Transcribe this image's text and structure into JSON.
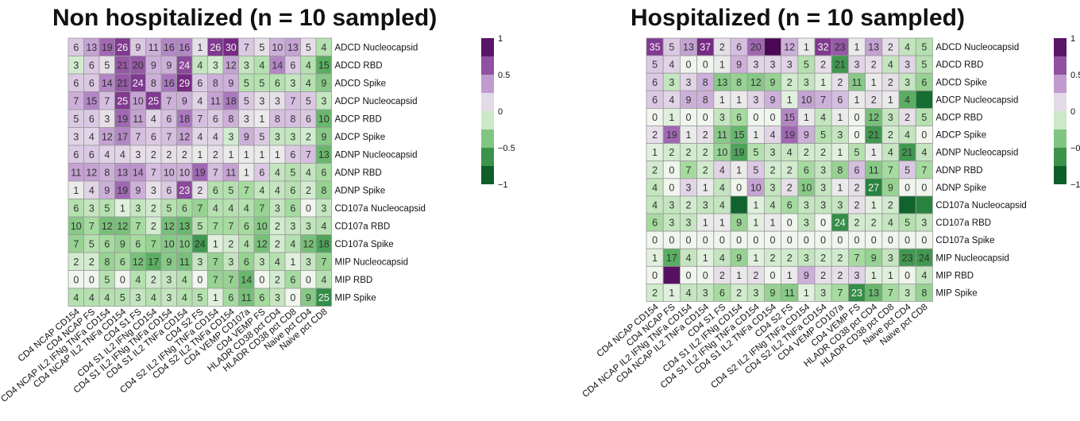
{
  "chart_data": [
    {
      "type": "heatmap",
      "title": "Non hospitalized (n = 10 sampled)",
      "x_categories": [
        "CD4 NCAP CD154",
        "CD4 NCAP FS",
        "CD4 NCAP IL2 IFNg TNFa CD154",
        "CD4 NCAP IL2 TNFa CD154",
        "CD4 S1 FS",
        "CD4 S1 IL2 IFNg CD154",
        "CD4 S1 IL2 IFNg TNFa CD154",
        "CD4 S1 IL2 TNFa CD154",
        "CD4 S2 FS",
        "CD4 S2 IL2 IFNg TNFa CD154",
        "CD4 S2 IL2 TNFa CD154",
        "CD4 VEMP CD107a",
        "CD4 VEMP FS",
        "HLADR CD38 pct CD4",
        "HLADR CD38 pct CD8",
        "Naive pct CD4",
        "Naive pct CD8"
      ],
      "y_categories": [
        "ADCD Nucleocapsid",
        "ADCD RBD",
        "ADCD Spike",
        "ADCP Nucleocapsid",
        "ADCP RBD",
        "ADCP Spike",
        "ADNP Nucleocapsid",
        "ADNP RBD",
        "ADNP Spike",
        "CD107a Nucleocapsid",
        "CD107a RBD",
        "CD107a Spike",
        "MIP Nucleocapsid",
        "MIP RBD",
        "MIP Spike"
      ],
      "cell_labels": [
        [
          "6",
          "13",
          "19",
          "26",
          "9",
          "11",
          "16",
          "16",
          "1",
          "26",
          "30",
          "7",
          "5",
          "10",
          "13",
          "5",
          "4"
        ],
        [
          "3",
          "6",
          "5",
          "21",
          "20",
          "9",
          "9",
          "24",
          "4",
          "3",
          "12",
          "3",
          "4",
          "14",
          "6",
          "4",
          "15"
        ],
        [
          "6",
          "6",
          "14",
          "21",
          "24",
          "8",
          "16",
          "29",
          "6",
          "8",
          "9",
          "5",
          "5",
          "6",
          "3",
          "4",
          "9"
        ],
        [
          "7",
          "15",
          "7",
          "25",
          "10",
          "25",
          "7",
          "9",
          "4",
          "11",
          "18",
          "5",
          "3",
          "3",
          "7",
          "5",
          "3"
        ],
        [
          "5",
          "6",
          "3",
          "19",
          "11",
          "4",
          "6",
          "18",
          "7",
          "6",
          "8",
          "3",
          "1",
          "8",
          "8",
          "6",
          "10"
        ],
        [
          "3",
          "4",
          "12",
          "17",
          "7",
          "6",
          "7",
          "12",
          "4",
          "4",
          "3",
          "9",
          "5",
          "3",
          "3",
          "2",
          "9"
        ],
        [
          "6",
          "6",
          "4",
          "4",
          "3",
          "2",
          "2",
          "2",
          "1",
          "2",
          "1",
          "1",
          "1",
          "1",
          "6",
          "7",
          "13"
        ],
        [
          "11",
          "12",
          "8",
          "13",
          "14",
          "7",
          "10",
          "10",
          "19",
          "7",
          "11",
          "1",
          "6",
          "4",
          "5",
          "4",
          "6"
        ],
        [
          "1",
          "4",
          "9",
          "19",
          "9",
          "3",
          "6",
          "23",
          "2",
          "6",
          "5",
          "7",
          "4",
          "4",
          "6",
          "2",
          "8"
        ],
        [
          "6",
          "3",
          "5",
          "1",
          "3",
          "2",
          "5",
          "6",
          "7",
          "4",
          "4",
          "4",
          "7",
          "3",
          "6",
          "0",
          "3"
        ],
        [
          "10",
          "7",
          "12",
          "12",
          "7",
          "2",
          "12",
          "13",
          "5",
          "7",
          "7",
          "6",
          "10",
          "2",
          "3",
          "3",
          "4"
        ],
        [
          "7",
          "5",
          "6",
          "9",
          "6",
          "7",
          "10",
          "10",
          "24",
          "1",
          "2",
          "4",
          "12",
          "2",
          "4",
          "12",
          "18"
        ],
        [
          "2",
          "2",
          "8",
          "6",
          "12",
          "17",
          "9",
          "11",
          "3",
          "7",
          "3",
          "6",
          "3",
          "4",
          "1",
          "3",
          "7"
        ],
        [
          "0",
          "0",
          "5",
          "0",
          "4",
          "2",
          "3",
          "4",
          "0",
          "7",
          "7",
          "14",
          "0",
          "2",
          "6",
          "0",
          "4"
        ],
        [
          "4",
          "4",
          "4",
          "5",
          "3",
          "4",
          "3",
          "4",
          "5",
          "1",
          "6",
          "11",
          "6",
          "3",
          "0",
          "9",
          "25"
        ]
      ],
      "values": [
        [
          0.2,
          0.35,
          0.55,
          0.7,
          0.2,
          0.3,
          0.45,
          0.45,
          0.1,
          0.7,
          0.75,
          0.2,
          0.1,
          0.3,
          0.35,
          0.1,
          -0.2
        ],
        [
          -0.1,
          0.2,
          0.1,
          0.6,
          0.6,
          0.3,
          0.3,
          0.65,
          -0.15,
          -0.1,
          0.35,
          -0.15,
          -0.2,
          0.45,
          0.2,
          -0.2,
          -0.5
        ],
        [
          0.2,
          0.2,
          0.45,
          0.6,
          0.7,
          0.3,
          0.5,
          0.75,
          0.2,
          0.3,
          0.3,
          -0.2,
          -0.2,
          -0.2,
          -0.15,
          -0.2,
          -0.35
        ],
        [
          0.3,
          0.45,
          0.25,
          0.7,
          0.35,
          0.7,
          0.3,
          0.3,
          0.15,
          0.35,
          0.5,
          0.2,
          0.1,
          0.1,
          0.25,
          0.2,
          -0.15
        ],
        [
          0.2,
          0.2,
          0.1,
          0.55,
          0.35,
          0.15,
          0.25,
          0.5,
          0.25,
          0.2,
          0.3,
          0.1,
          0.05,
          0.25,
          0.25,
          0.2,
          -0.45
        ],
        [
          0.15,
          0.15,
          0.35,
          0.45,
          0.25,
          0.2,
          0.25,
          0.35,
          0.15,
          0.15,
          -0.1,
          0.3,
          0.2,
          -0.15,
          -0.15,
          -0.1,
          -0.35
        ],
        [
          0.2,
          0.2,
          0.15,
          0.15,
          0.1,
          0.1,
          0.1,
          0.1,
          0.05,
          0.1,
          0.05,
          0.05,
          0.05,
          0.05,
          0.2,
          0.25,
          -0.45
        ],
        [
          0.35,
          0.35,
          0.3,
          0.4,
          0.4,
          0.25,
          0.3,
          0.3,
          0.55,
          0.25,
          0.35,
          0.05,
          0.2,
          -0.15,
          -0.2,
          -0.15,
          -0.25
        ],
        [
          0.05,
          0.15,
          0.3,
          0.55,
          0.3,
          0.1,
          0.2,
          0.65,
          0.1,
          -0.2,
          -0.2,
          -0.25,
          -0.15,
          -0.15,
          -0.2,
          -0.1,
          -0.3
        ],
        [
          -0.2,
          -0.15,
          -0.2,
          -0.05,
          -0.15,
          -0.1,
          -0.2,
          -0.25,
          -0.3,
          -0.2,
          -0.2,
          -0.2,
          -0.3,
          -0.15,
          -0.25,
          0.0,
          -0.15
        ],
        [
          -0.35,
          -0.25,
          -0.4,
          -0.4,
          -0.25,
          -0.1,
          -0.4,
          -0.45,
          -0.2,
          -0.25,
          -0.25,
          -0.25,
          -0.35,
          -0.1,
          -0.15,
          -0.15,
          -0.2
        ],
        [
          -0.3,
          -0.2,
          -0.25,
          -0.3,
          -0.25,
          -0.3,
          -0.35,
          -0.35,
          -0.6,
          -0.05,
          -0.1,
          -0.2,
          -0.4,
          -0.1,
          -0.2,
          -0.4,
          -0.55
        ],
        [
          -0.1,
          -0.1,
          -0.3,
          -0.25,
          -0.4,
          -0.5,
          -0.35,
          -0.4,
          -0.15,
          -0.3,
          -0.15,
          -0.3,
          -0.15,
          -0.2,
          -0.05,
          -0.15,
          -0.3
        ],
        [
          0.0,
          0.0,
          -0.2,
          0.0,
          -0.2,
          -0.1,
          -0.15,
          -0.2,
          0.0,
          -0.3,
          -0.3,
          -0.45,
          0.0,
          -0.1,
          -0.25,
          0.0,
          -0.2
        ],
        [
          -0.2,
          -0.2,
          -0.2,
          -0.2,
          -0.15,
          -0.2,
          -0.15,
          -0.2,
          -0.2,
          -0.05,
          -0.25,
          -0.4,
          -0.25,
          -0.15,
          0.0,
          -0.35,
          -0.65
        ]
      ],
      "colorbar": {
        "min": -1,
        "max": 1,
        "ticks": [
          "1",
          "0.5",
          "0",
          "−0.5",
          "−1"
        ]
      }
    },
    {
      "type": "heatmap",
      "title": "Hospitalized (n = 10 sampled)",
      "x_categories": [
        "CD4 NCAP CD154",
        "CD4 NCAP FS",
        "CD4 NCAP IL2 IFNg TNFa CD154",
        "CD4 NCAP IL2 TNFa CD154",
        "CD4 S1 FS",
        "CD4 S1 IL2 IFNg CD154",
        "CD4 S1 IL2 IFNg TNFa CD154",
        "CD4 S1 IL2 TNFa CD154",
        "CD4 S2 FS",
        "CD4 S2 IL2 IFNg TNFa CD154",
        "CD4 S2 IL2 TNFa CD154",
        "CD4 VEMP CD107a",
        "CD4 VEMP FS",
        "HLADR CD38 pct CD4",
        "HLADR CD38 pct CD8",
        "Naive pct CD4",
        "Naive pct CD8"
      ],
      "y_categories": [
        "ADCD Nucleocapsid",
        "ADCD RBD",
        "ADCD Spike",
        "ADCP Nucleocapsid",
        "ADCP RBD",
        "ADCP Spike",
        "ADNP Nucleocapsid",
        "ADNP RBD",
        "ADNP Spike",
        "CD107a Nucleocapsid",
        "CD107a RBD",
        "CD107a Spike",
        "MIP Nucleocapsid",
        "MIP RBD",
        "MIP Spike"
      ],
      "cell_labels": [
        [
          "35",
          "5",
          "13",
          "37",
          "2",
          "6",
          "20",
          "",
          "12",
          "1",
          "32",
          "23",
          "1",
          "13",
          "2",
          "4",
          "5"
        ],
        [
          "5",
          "4",
          "0",
          "0",
          "1",
          "9",
          "3",
          "3",
          "3",
          "5",
          "2",
          "21",
          "3",
          "2",
          "4",
          "3",
          "5"
        ],
        [
          "6",
          "3",
          "3",
          "8",
          "13",
          "8",
          "12",
          "9",
          "2",
          "3",
          "1",
          "2",
          "11",
          "1",
          "2",
          "3",
          "6"
        ],
        [
          "6",
          "4",
          "9",
          "8",
          "1",
          "1",
          "3",
          "9",
          "1",
          "10",
          "7",
          "6",
          "1",
          "2",
          "1",
          "4",
          ""
        ],
        [
          "0",
          "1",
          "0",
          "0",
          "3",
          "6",
          "0",
          "0",
          "15",
          "1",
          "4",
          "1",
          "0",
          "12",
          "3",
          "2",
          "5"
        ],
        [
          "2",
          "19",
          "1",
          "2",
          "11",
          "15",
          "1",
          "4",
          "19",
          "9",
          "5",
          "3",
          "0",
          "21",
          "2",
          "4",
          "0"
        ],
        [
          "1",
          "2",
          "2",
          "2",
          "10",
          "19",
          "5",
          "3",
          "4",
          "2",
          "2",
          "1",
          "5",
          "1",
          "4",
          "21",
          "4"
        ],
        [
          "2",
          "0",
          "7",
          "2",
          "4",
          "1",
          "5",
          "2",
          "2",
          "6",
          "3",
          "8",
          "6",
          "11",
          "7",
          "5",
          "7"
        ],
        [
          "4",
          "0",
          "3",
          "1",
          "4",
          "0",
          "10",
          "3",
          "2",
          "10",
          "3",
          "1",
          "2",
          "27",
          "9",
          "0",
          "0"
        ],
        [
          "4",
          "3",
          "2",
          "3",
          "4",
          "",
          "1",
          "4",
          "6",
          "3",
          "3",
          "3",
          "2",
          "1",
          "2",
          "",
          ""
        ],
        [
          "6",
          "3",
          "3",
          "1",
          "1",
          "9",
          "1",
          "1",
          "0",
          "3",
          "0",
          "24",
          "2",
          "2",
          "4",
          "5",
          "3"
        ],
        [
          "0",
          "0",
          "0",
          "0",
          "0",
          "0",
          "0",
          "0",
          "0",
          "0",
          "0",
          "0",
          "0",
          "0",
          "0",
          "0",
          "0"
        ],
        [
          "1",
          "17",
          "4",
          "1",
          "4",
          "9",
          "1",
          "2",
          "2",
          "3",
          "2",
          "2",
          "7",
          "9",
          "3",
          "23",
          "24"
        ],
        [
          "0",
          "",
          "0",
          "0",
          "2",
          "1",
          "2",
          "0",
          "1",
          "9",
          "2",
          "2",
          "3",
          "1",
          "1",
          "0",
          "4"
        ],
        [
          "2",
          "1",
          "4",
          "3",
          "6",
          "2",
          "3",
          "9",
          "11",
          "1",
          "3",
          "7",
          "23",
          "13",
          "7",
          "3",
          "8"
        ]
      ],
      "values": [
        [
          0.7,
          0.2,
          0.35,
          0.75,
          0.1,
          0.25,
          0.55,
          0.95,
          0.3,
          0.05,
          0.7,
          0.6,
          0.05,
          0.35,
          0.1,
          -0.15,
          -0.2
        ],
        [
          0.2,
          0.15,
          0.0,
          0.0,
          0.05,
          0.3,
          0.15,
          0.15,
          0.15,
          -0.2,
          0.1,
          -0.6,
          0.15,
          0.1,
          -0.15,
          0.15,
          -0.2
        ],
        [
          0.2,
          -0.15,
          0.15,
          0.3,
          -0.35,
          -0.3,
          -0.35,
          -0.3,
          -0.1,
          -0.15,
          -0.05,
          0.1,
          -0.35,
          0.05,
          0.1,
          -0.15,
          -0.3
        ],
        [
          0.2,
          0.15,
          0.3,
          0.3,
          0.05,
          0.05,
          0.15,
          0.3,
          -0.05,
          0.35,
          0.3,
          0.25,
          0.05,
          0.1,
          0.05,
          -0.5,
          -0.8
        ],
        [
          0.0,
          -0.05,
          0.0,
          0.0,
          -0.15,
          -0.25,
          0.0,
          0.0,
          0.45,
          0.05,
          -0.15,
          0.05,
          0.0,
          -0.4,
          -0.15,
          0.1,
          -0.2
        ],
        [
          0.1,
          0.55,
          0.05,
          0.1,
          -0.35,
          -0.45,
          0.05,
          0.15,
          0.55,
          0.3,
          -0.2,
          -0.15,
          0.0,
          -0.6,
          -0.1,
          -0.15,
          0.0
        ],
        [
          -0.05,
          -0.1,
          -0.1,
          -0.1,
          -0.3,
          -0.55,
          -0.2,
          -0.15,
          -0.15,
          -0.1,
          -0.1,
          -0.05,
          -0.2,
          0.05,
          -0.15,
          -0.6,
          -0.15
        ],
        [
          -0.1,
          0.0,
          -0.25,
          -0.1,
          0.15,
          0.05,
          0.2,
          -0.1,
          -0.1,
          -0.25,
          -0.15,
          -0.3,
          0.25,
          -0.35,
          -0.25,
          0.2,
          -0.25
        ],
        [
          -0.15,
          0.0,
          0.15,
          0.05,
          -0.15,
          0.0,
          0.35,
          -0.15,
          0.1,
          -0.35,
          -0.15,
          0.05,
          0.1,
          -0.7,
          -0.3,
          0.0,
          0.0
        ],
        [
          -0.15,
          -0.15,
          -0.1,
          -0.15,
          -0.15,
          -0.85,
          -0.05,
          -0.15,
          -0.25,
          -0.15,
          -0.15,
          -0.15,
          0.1,
          -0.05,
          -0.1,
          -0.85,
          -0.7
        ],
        [
          -0.25,
          -0.15,
          -0.15,
          0.05,
          0.05,
          -0.3,
          -0.05,
          0.05,
          0.0,
          -0.15,
          0.0,
          -0.65,
          -0.1,
          -0.1,
          -0.15,
          -0.2,
          -0.15
        ],
        [
          0.0,
          0.0,
          0.0,
          0.0,
          0.0,
          0.0,
          0.0,
          0.0,
          0.0,
          0.0,
          0.0,
          0.0,
          0.0,
          0.0,
          0.0,
          0.0,
          0.0
        ],
        [
          -0.05,
          -0.5,
          -0.15,
          -0.05,
          -0.15,
          -0.3,
          -0.05,
          -0.1,
          -0.1,
          -0.15,
          -0.1,
          -0.1,
          -0.25,
          -0.3,
          -0.15,
          -0.6,
          -0.6
        ],
        [
          0.0,
          0.9,
          0.0,
          0.0,
          0.1,
          0.05,
          0.1,
          0.0,
          0.05,
          0.3,
          0.1,
          0.1,
          0.15,
          -0.05,
          -0.05,
          0.0,
          -0.15
        ],
        [
          -0.1,
          -0.05,
          -0.15,
          -0.15,
          -0.25,
          -0.1,
          -0.15,
          -0.3,
          -0.35,
          -0.05,
          -0.15,
          -0.25,
          -0.65,
          -0.45,
          -0.25,
          -0.15,
          -0.3
        ]
      ],
      "colorbar": {
        "min": -1,
        "max": 1,
        "ticks": [
          "1",
          "0.5",
          "0",
          "−0.5",
          "−1"
        ]
      }
    }
  ]
}
